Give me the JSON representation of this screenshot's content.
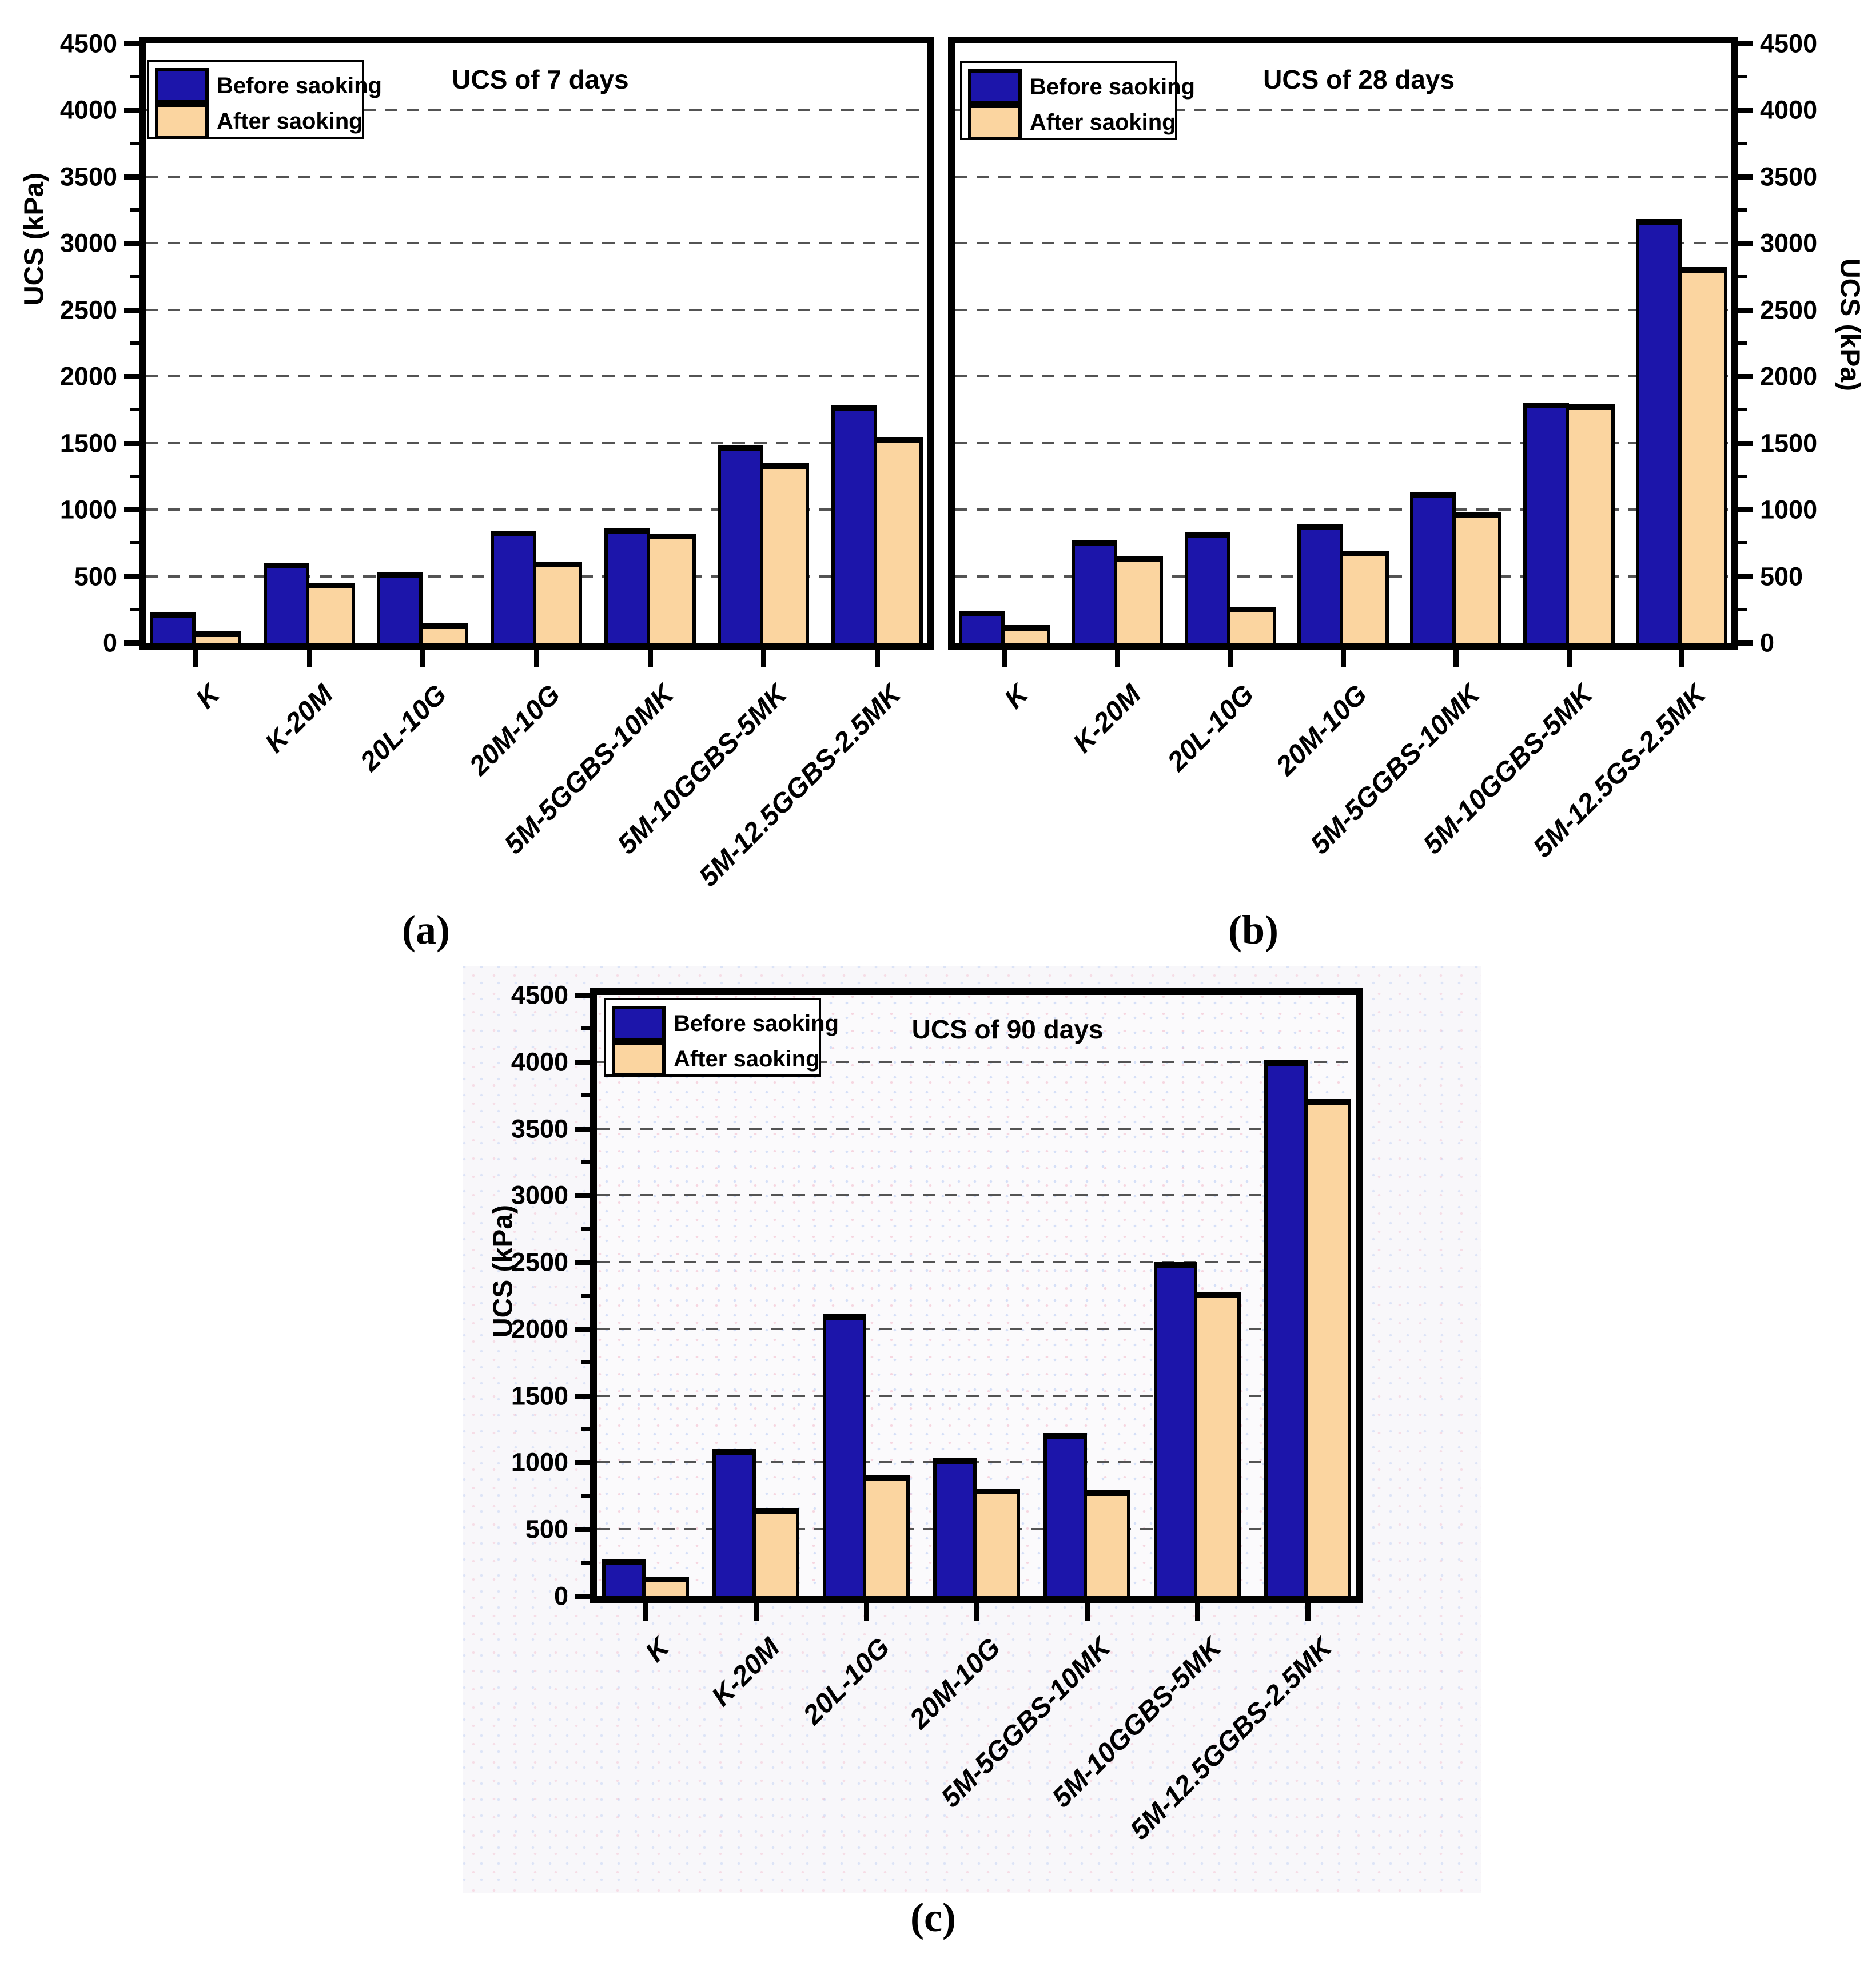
{
  "page": {
    "background": "#ffffff"
  },
  "colors": {
    "before": "#1c15aa",
    "after": "#fbd5a0",
    "grid": "#535353",
    "axis": "#000000",
    "panel_c_background": "#f8f7fa"
  },
  "legend": {
    "before_label": "Before saoking",
    "after_label": "After saoking"
  },
  "captions": {
    "a": "(a)",
    "b": "(b)",
    "c": "(c)"
  },
  "chart_data": [
    {
      "id": "a",
      "type": "bar",
      "caption": "(a)",
      "title": "UCS of 7 days",
      "ylabel": "UCS (kPa)",
      "ylim": [
        0,
        4500
      ],
      "ytick_step": 500,
      "minor_tick_step": 250,
      "grid": "dashed-horizontal",
      "legend_position": "top-left",
      "axis_side": "left",
      "categories": [
        "K",
        "K-20M",
        "20L-10G",
        "20M-10G",
        "5M-5GGBS-10MK",
        "5M-10GGBS-5MK",
        "5M-12.5GGBS-2.5MK"
      ],
      "series": [
        {
          "name": "Before saoking",
          "values": [
            230,
            600,
            530,
            840,
            860,
            1480,
            1780
          ]
        },
        {
          "name": "After saoking",
          "values": [
            85,
            450,
            145,
            610,
            820,
            1350,
            1540
          ]
        }
      ]
    },
    {
      "id": "b",
      "type": "bar",
      "caption": "(b)",
      "title": "UCS of 28 days",
      "ylabel": "UCS (kPa)",
      "ylim": [
        0,
        4500
      ],
      "ytick_step": 500,
      "minor_tick_step": 250,
      "grid": "dashed-horizontal",
      "legend_position": "top-left",
      "axis_side": "right",
      "categories": [
        "K",
        "K-20M",
        "20L-10G",
        "20M-10G",
        "5M-5GGBS-10MK",
        "5M-10GGBS-5MK",
        "5M-12.5GS-2.5MK"
      ],
      "series": [
        {
          "name": "Before saoking",
          "values": [
            240,
            770,
            830,
            890,
            1135,
            1805,
            3180
          ]
        },
        {
          "name": "After saoking",
          "values": [
            135,
            650,
            270,
            690,
            980,
            1790,
            2820
          ]
        }
      ]
    },
    {
      "id": "c",
      "type": "bar",
      "caption": "(c)",
      "title": "UCS of 90 days",
      "ylabel": "UCS (kPa)",
      "ylim": [
        0,
        4500
      ],
      "ytick_step": 500,
      "minor_tick_step": 250,
      "grid": "dashed-horizontal",
      "legend_position": "top-left",
      "axis_side": "left",
      "categories": [
        "K",
        "K-20M",
        "20L-10G",
        "20M-10G",
        "5M-5GGBS-10MK",
        "5M-10GGBS-5MK",
        "5M-12.5GGBS-2.5MK"
      ],
      "series": [
        {
          "name": "Before saoking",
          "values": [
            275,
            1100,
            2110,
            1030,
            1220,
            2500,
            4010
          ]
        },
        {
          "name": "After saoking",
          "values": [
            145,
            660,
            905,
            805,
            790,
            2275,
            3720
          ]
        }
      ]
    }
  ]
}
